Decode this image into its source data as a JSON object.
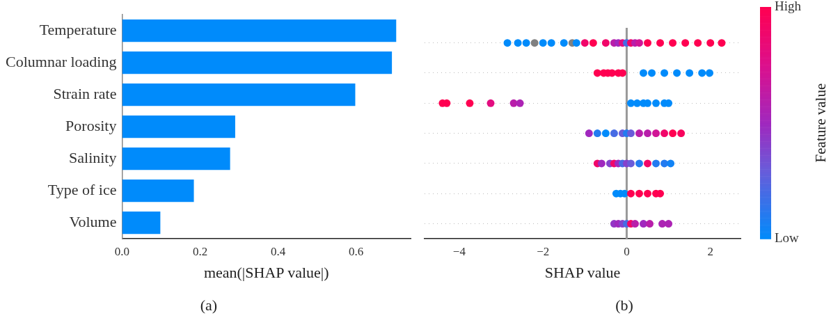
{
  "chart_data": [
    {
      "type": "bar",
      "orientation": "horizontal",
      "categories": [
        "Temperature",
        "Columnar loading",
        "Strain rate",
        "Porosity",
        "Salinity",
        "Type of ice",
        "Volume"
      ],
      "values": [
        0.703,
        0.692,
        0.598,
        0.29,
        0.277,
        0.184,
        0.098
      ],
      "color": "#008bfb",
      "xlim": [
        0,
        0.74
      ],
      "xticks": [
        {
          "value": 0,
          "label": "0.0"
        },
        {
          "value": 0.2,
          "label": "0.2"
        },
        {
          "value": 0.4,
          "label": "0.4"
        },
        {
          "value": 0.6,
          "label": "0.6"
        }
      ],
      "xlabel": "mean(|SHAP value|)",
      "grid": false,
      "legend": false,
      "annotations": [
        "(a)"
      ]
    },
    {
      "type": "scatter",
      "orientation": "horizontal",
      "tick_labels": "x",
      "marker": "circle",
      "categories": [
        "Temperature",
        "Columnar loading",
        "Strain rate",
        "Porosity",
        "Salinity",
        "Type of ice",
        "Volume"
      ],
      "series": [
        {
          "x": [
            "Temperature",
            "Temperature",
            "Temperature",
            "Temperature",
            "Temperature",
            "Temperature",
            "Temperature",
            "Temperature",
            "Temperature",
            "Temperature",
            "Temperature",
            "Temperature",
            "Temperature",
            "Temperature",
            "Temperature",
            "Temperature",
            "Temperature",
            "Temperature",
            "Temperature",
            "Temperature",
            "Temperature",
            "Temperature",
            "Temperature",
            "Temperature",
            "Temperature",
            "Temperature",
            "Columnar loading",
            "Columnar loading",
            "Columnar loading",
            "Columnar loading",
            "Columnar loading",
            "Columnar loading",
            "Columnar loading",
            "Columnar loading",
            "Columnar loading",
            "Columnar loading",
            "Columnar loading",
            "Columnar loading",
            "Columnar loading",
            "Strain rate",
            "Strain rate",
            "Strain rate",
            "Strain rate",
            "Strain rate",
            "Strain rate",
            "Strain rate",
            "Strain rate",
            "Strain rate",
            "Strain rate",
            "Strain rate",
            "Strain rate",
            "Strain rate",
            "Porosity",
            "Porosity",
            "Porosity",
            "Porosity",
            "Porosity",
            "Porosity",
            "Porosity",
            "Porosity",
            "Porosity",
            "Porosity",
            "Porosity",
            "Porosity",
            "Porosity",
            "Salinity",
            "Salinity",
            "Salinity",
            "Salinity",
            "Salinity",
            "Salinity",
            "Salinity",
            "Salinity",
            "Salinity",
            "Salinity",
            "Salinity",
            "Salinity",
            "Salinity",
            "Type of ice",
            "Type of ice",
            "Type of ice",
            "Type of ice",
            "Type of ice",
            "Type of ice",
            "Type of ice",
            "Type of ice",
            "Volume",
            "Volume",
            "Volume",
            "Volume",
            "Volume",
            "Volume",
            "Volume",
            "Volume",
            "Volume",
            "Volume"
          ],
          "values": [
            -2.85,
            -2.6,
            -2.4,
            -2.2,
            -2.0,
            -1.8,
            -1.5,
            -1.3,
            -1.2,
            -1.0,
            -0.8,
            -0.5,
            -0.3,
            -0.2,
            -0.1,
            0,
            0.1,
            0.2,
            0.3,
            0.5,
            0.8,
            1.1,
            1.4,
            1.7,
            2.0,
            2.27,
            -0.7,
            -0.55,
            -0.45,
            -0.35,
            -0.2,
            -0.1,
            0.4,
            0.6,
            0.9,
            1.2,
            1.5,
            1.8,
            1.98,
            -4.4,
            -4.3,
            -3.75,
            -3.25,
            -2.7,
            -2.55,
            0.1,
            0.25,
            0.4,
            0.5,
            0.7,
            0.9,
            1.0,
            -0.9,
            -0.7,
            -0.5,
            -0.3,
            -0.1,
            0,
            0.1,
            0.3,
            0.5,
            0.7,
            0.9,
            1.1,
            1.3,
            -0.7,
            -0.6,
            -0.4,
            -0.3,
            -0.2,
            -0.1,
            0,
            0.1,
            0.3,
            0.5,
            0.7,
            0.9,
            1.05,
            -0.25,
            -0.15,
            -0.05,
            0.1,
            0.3,
            0.5,
            0.7,
            0.8,
            -0.3,
            -0.2,
            -0.1,
            0,
            0.1,
            0.2,
            0.4,
            0.55,
            0.85,
            1.0
          ],
          "cvalues": [
            0,
            0,
            0,
            null,
            0,
            0,
            0,
            null,
            0,
            0.9,
            1,
            0.9,
            0.6,
            0.5,
            0.8,
            0.2,
            0.9,
            0.6,
            0.7,
            1,
            1,
            1,
            1,
            1,
            1,
            1,
            1,
            1,
            1,
            1,
            1,
            1,
            0,
            0,
            0,
            0,
            0,
            0,
            0,
            1,
            1,
            1,
            0.8,
            0.6,
            0.55,
            0,
            0,
            0,
            0,
            0,
            0,
            0,
            0.5,
            0.1,
            0,
            0.2,
            0.3,
            0.1,
            0.3,
            0.6,
            0.6,
            0.7,
            0.9,
            1,
            0.95,
            0.9,
            0.5,
            0.4,
            0.9,
            0.5,
            0.2,
            0.4,
            0.3,
            0.1,
            0.9,
            0.1,
            0.1,
            0.05,
            0,
            0,
            0,
            1,
            1,
            1,
            1,
            1,
            0.45,
            0.5,
            0.4,
            0.2,
            0.9,
            0.6,
            0.5,
            0.6,
            0.55,
            0.55
          ]
        }
      ],
      "xlim": [
        -4.83,
        2.72
      ],
      "xticks": [
        {
          "value": -4,
          "label": "−4"
        },
        {
          "value": -2,
          "label": "−2"
        },
        {
          "value": 0,
          "label": "0"
        },
        {
          "value": 2,
          "label": "2"
        }
      ],
      "xlabel": "SHAP value",
      "grid": "y",
      "legend": false,
      "ref_lines": [
        {
          "axis": "x",
          "value": 0,
          "color": "#999999"
        }
      ],
      "clabel": "Feature value",
      "clim": [
        0,
        1
      ],
      "cticks": [
        {
          "value": 0,
          "label": "Low"
        },
        {
          "value": 1,
          "label": "High"
        }
      ],
      "annotations": [
        "(b)"
      ]
    }
  ]
}
